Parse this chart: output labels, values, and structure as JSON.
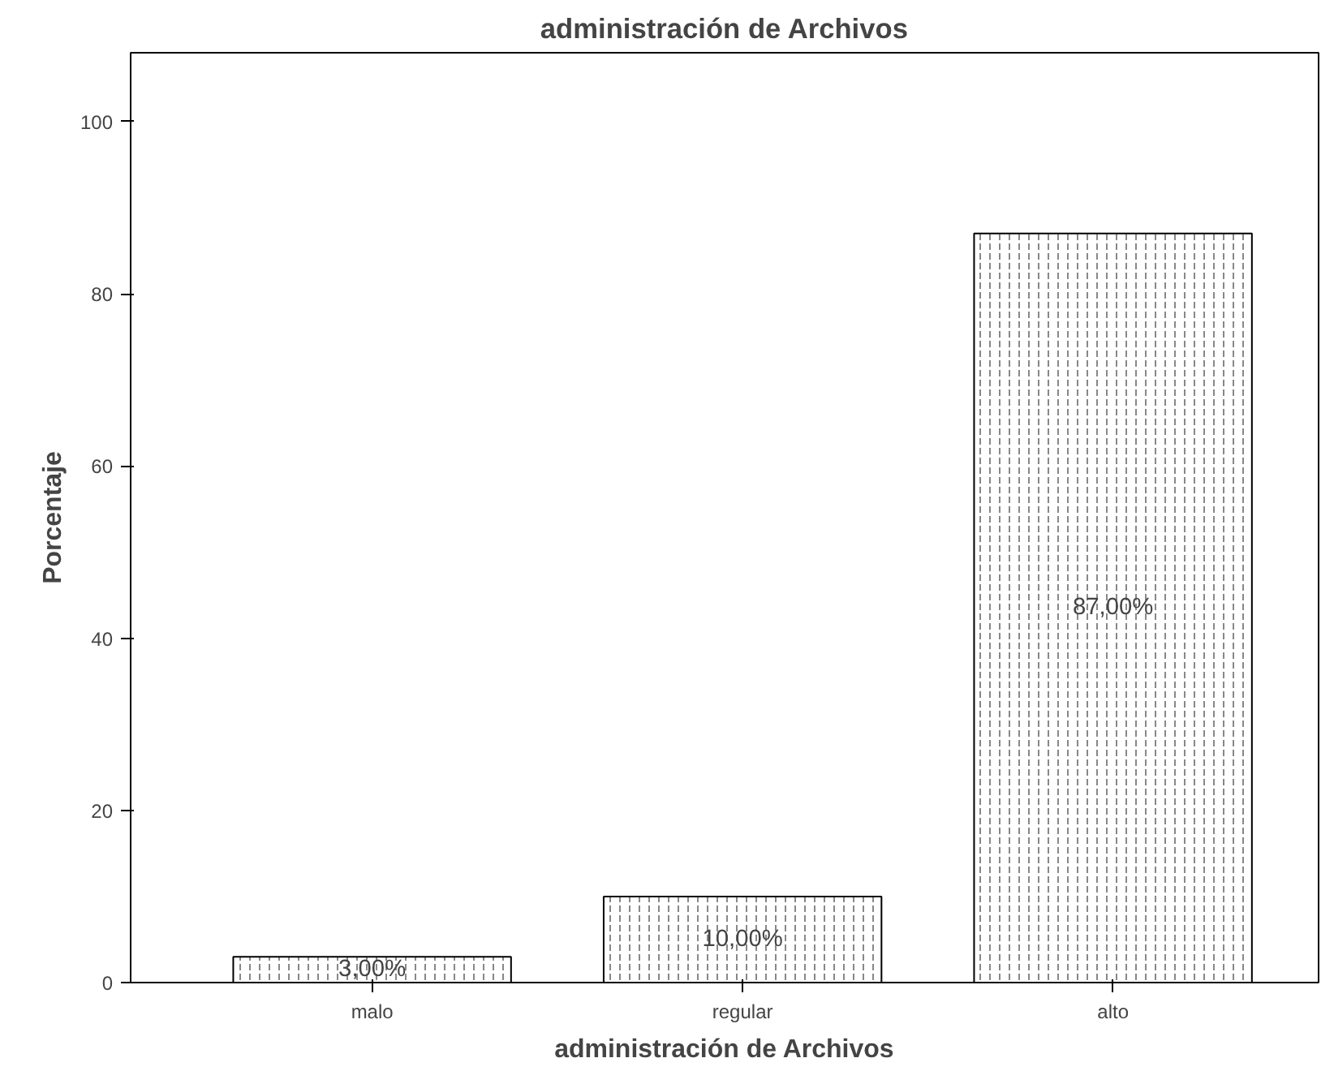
{
  "chart_data": {
    "type": "bar",
    "title": "administración de Archivos",
    "xlabel": "administración de Archivos",
    "ylabel": "Porcentaje",
    "categories": [
      "malo",
      "regular",
      "alto"
    ],
    "values": [
      3,
      10,
      87
    ],
    "value_labels": [
      "3,00%",
      "10,00%",
      "87,00%"
    ],
    "color": "#ffffff",
    "ylim": [
      0,
      108
    ],
    "yticks": [
      0,
      20,
      40,
      60,
      80,
      100
    ],
    "grid": false
  }
}
